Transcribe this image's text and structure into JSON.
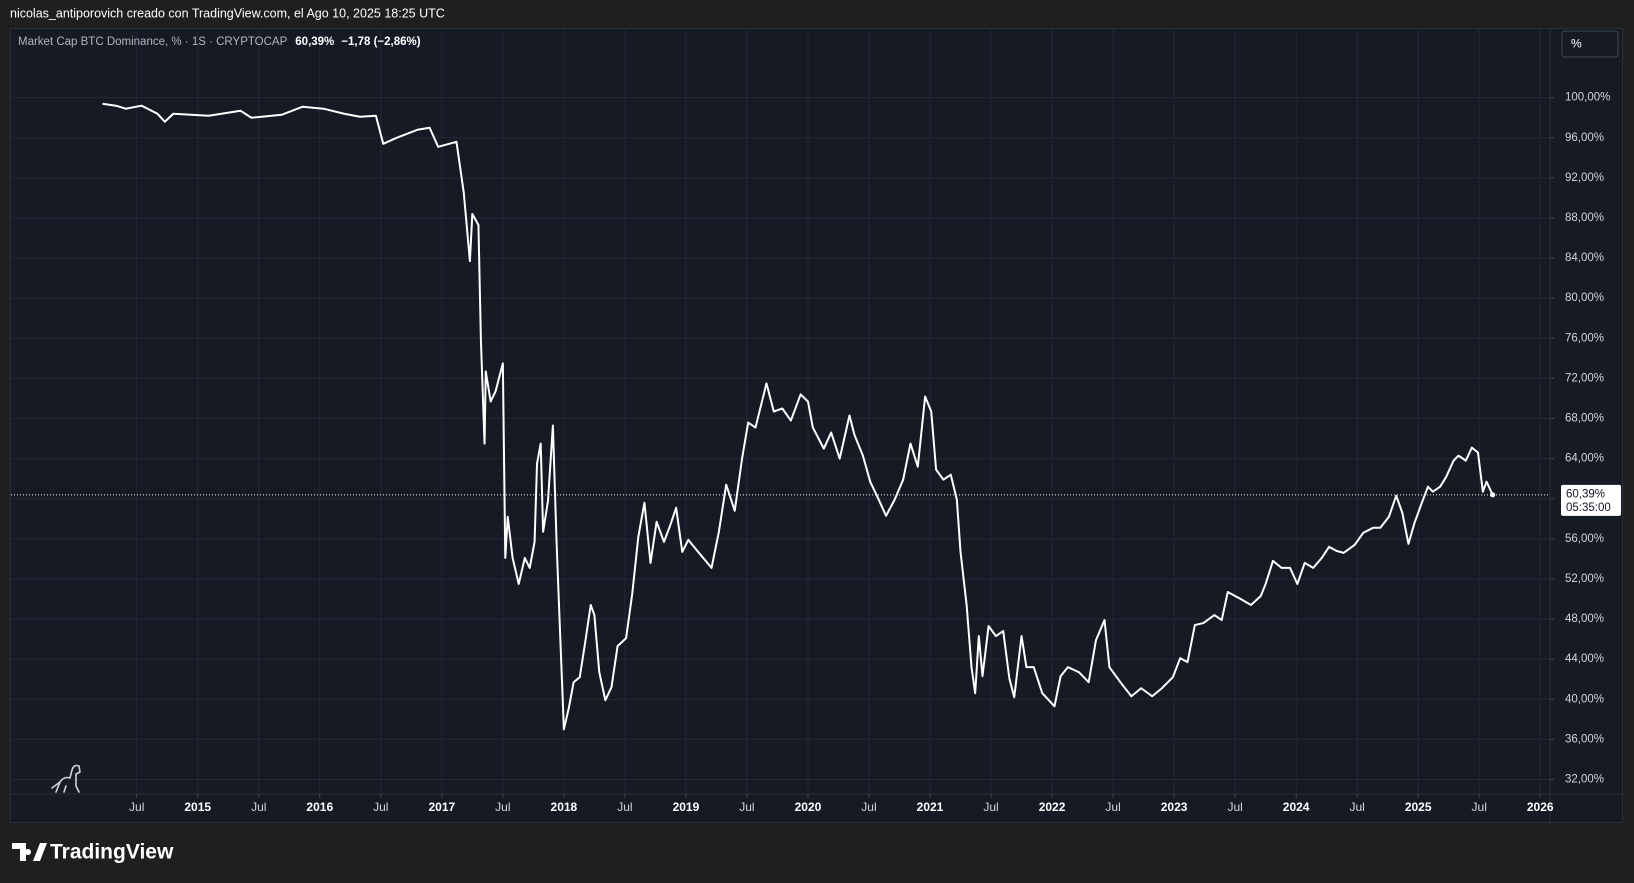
{
  "header": "nicolas_antiporovich creado con TradingView.com, el Ago 10, 2025 18:25 UTC",
  "scale_button": "%",
  "logo": "TradingView",
  "chart_data": {
    "type": "line",
    "series": [
      {
        "name": "Market Cap BTC Dominance, % · 1S · CRYPTOCAP",
        "color": "#ffffff",
        "values": [
          99.4,
          99.2,
          98.9,
          99.2,
          98.4,
          97.6,
          98.4,
          98.2,
          98.7,
          98.0,
          98.3,
          99.1,
          98.9,
          98.4,
          98.1,
          98.2,
          95.4,
          96.0,
          96.8,
          97.0,
          95.1,
          95.6,
          90.5,
          83.7,
          88.4,
          87.3,
          75.9,
          65.5,
          72.7,
          69.7,
          70.7,
          73.5,
          54.1,
          58.2,
          54.1,
          51.5,
          54.1,
          53.1,
          55.7,
          63.5,
          65.5,
          56.7,
          59.8,
          67.3,
          55.7,
          46.3,
          37.0,
          39.1,
          41.7,
          42.2,
          45.3,
          49.4,
          48.4,
          42.7,
          39.9,
          41.2,
          45.3,
          46.1,
          50.5,
          56.2,
          59.6,
          53.6,
          57.7,
          55.7,
          57.3,
          59.1,
          54.7,
          55.9,
          54.7,
          53.1,
          56.7,
          61.4,
          58.8,
          64.0,
          67.6,
          67.1,
          71.5,
          68.7,
          69.0,
          67.8,
          70.4,
          69.7,
          67.1,
          65.0,
          66.6,
          64.0,
          68.3,
          66.4,
          64.3,
          61.7,
          59.9,
          58.3,
          59.9,
          61.9,
          65.5,
          63.2,
          70.2,
          68.7,
          62.9,
          61.9,
          62.4,
          59.9,
          54.7,
          49.4,
          43.2,
          40.6,
          46.3,
          42.3,
          47.3,
          46.3,
          46.8,
          42.1,
          40.2,
          46.3,
          43.2,
          43.2,
          40.6,
          39.3,
          42.3,
          43.2,
          42.7,
          41.7,
          45.9,
          47.9,
          43.2,
          41.7,
          40.3,
          41.1,
          40.3,
          41.1,
          42.2,
          44.1,
          43.7,
          47.4,
          47.6,
          48.4,
          47.9,
          50.7,
          50.3,
          49.9,
          49.4,
          50.3,
          51.5,
          53.8,
          53.1,
          53.1,
          51.5,
          53.6,
          53.1,
          54.1,
          55.2,
          54.8,
          54.6,
          55.4,
          56.6,
          57.1,
          57.1,
          58.2,
          60.3,
          58.6,
          55.5,
          57.6,
          59.6,
          61.2,
          60.7,
          61.2,
          62.2,
          63.8,
          64.3,
          63.8,
          65.1,
          64.6,
          60.7,
          61.7,
          60.39
        ]
      }
    ],
    "x": [
      2014.22,
      2014.33,
      2014.41,
      2014.54,
      2014.67,
      2014.73,
      2014.8,
      2015.09,
      2015.35,
      2015.44,
      2015.69,
      2015.86,
      2016.03,
      2016.2,
      2016.33,
      2016.46,
      2016.52,
      2016.63,
      2016.8,
      2016.9,
      2016.97,
      2017.12,
      2017.18,
      2017.23,
      2017.25,
      2017.3,
      2017.32,
      2017.35,
      2017.36,
      2017.4,
      2017.44,
      2017.5,
      2017.52,
      2017.54,
      2017.58,
      2017.63,
      2017.68,
      2017.72,
      2017.76,
      2017.78,
      2017.81,
      2017.83,
      2017.87,
      2017.91,
      2017.94,
      2017.97,
      2018.0,
      2018.04,
      2018.08,
      2018.13,
      2018.17,
      2018.22,
      2018.25,
      2018.29,
      2018.34,
      2018.39,
      2018.44,
      2018.51,
      2018.56,
      2018.61,
      2018.66,
      2018.71,
      2018.76,
      2018.82,
      2018.87,
      2018.92,
      2018.97,
      2019.02,
      2019.1,
      2019.21,
      2019.27,
      2019.33,
      2019.4,
      2019.46,
      2019.51,
      2019.57,
      2019.66,
      2019.72,
      2019.79,
      2019.86,
      2019.94,
      2020.0,
      2020.04,
      2020.13,
      2020.19,
      2020.26,
      2020.34,
      2020.38,
      2020.45,
      2020.51,
      2020.58,
      2020.64,
      2020.71,
      2020.78,
      2020.84,
      2020.9,
      2020.96,
      2021.01,
      2021.05,
      2021.11,
      2021.17,
      2021.22,
      2021.25,
      2021.3,
      2021.34,
      2021.37,
      2021.4,
      2021.43,
      2021.48,
      2021.54,
      2021.6,
      2021.65,
      2021.69,
      2021.75,
      2021.79,
      2021.85,
      2021.92,
      2022.02,
      2022.07,
      2022.13,
      2022.22,
      2022.3,
      2022.36,
      2022.43,
      2022.47,
      2022.56,
      2022.65,
      2022.73,
      2022.82,
      2022.9,
      2022.99,
      2023.05,
      2023.11,
      2023.17,
      2023.24,
      2023.33,
      2023.39,
      2023.44,
      2023.5,
      2023.56,
      2023.63,
      2023.71,
      2023.75,
      2023.81,
      2023.88,
      2023.95,
      2024.01,
      2024.07,
      2024.14,
      2024.21,
      2024.27,
      2024.33,
      2024.39,
      2024.48,
      2024.55,
      2024.63,
      2024.69,
      2024.76,
      2024.82,
      2024.87,
      2024.92,
      2024.97,
      2025.03,
      2025.08,
      2025.12,
      2025.18,
      2025.23,
      2025.29,
      2025.33,
      2025.39,
      2025.44,
      2025.49,
      2025.53,
      2025.56,
      2025.61
    ],
    "last_value": 60.39,
    "last_label": "60,39%",
    "change": "−1,78 (−2,86%)",
    "countdown": "05:35:00",
    "xlim": [
      2013.47,
      2026.08
    ],
    "ylim": [
      30.55,
      106.85
    ],
    "xticks": [
      {
        "value": 2014.5,
        "label": "Jul"
      },
      2015,
      {
        "value": 2015.5,
        "label": "Jul"
      },
      2016,
      {
        "value": 2016.5,
        "label": "Jul"
      },
      2017,
      {
        "value": 2017.5,
        "label": "Jul"
      },
      2018,
      {
        "value": 2018.5,
        "label": "Jul"
      },
      2019,
      {
        "value": 2019.5,
        "label": "Jul"
      },
      2020,
      {
        "value": 2020.5,
        "label": "Jul"
      },
      2021,
      {
        "value": 2021.5,
        "label": "Jul"
      },
      2022,
      {
        "value": 2022.5,
        "label": "Jul"
      },
      2023,
      {
        "value": 2023.5,
        "label": "Jul"
      },
      2024,
      {
        "value": 2024.5,
        "label": "Jul"
      },
      2025,
      {
        "value": 2025.5,
        "label": "Jul"
      },
      2026
    ],
    "yticks": [
      {
        "value": 32,
        "label": "32,00%"
      },
      {
        "value": 36,
        "label": "36,00%"
      },
      {
        "value": 40,
        "label": "40,00%"
      },
      {
        "value": 44,
        "label": "44,00%"
      },
      {
        "value": 48,
        "label": "48,00%"
      },
      {
        "value": 52,
        "label": "52,00%"
      },
      {
        "value": 56,
        "label": "56,00%"
      },
      {
        "value": 60,
        "label": "60,00%"
      },
      {
        "value": 64,
        "label": "64,00%"
      },
      {
        "value": 68,
        "label": "68,00%"
      },
      {
        "value": 72,
        "label": "72,00%"
      },
      {
        "value": 76,
        "label": "76,00%"
      },
      {
        "value": 80,
        "label": "80,00%"
      },
      {
        "value": 84,
        "label": "84,00%"
      },
      {
        "value": 88,
        "label": "88,00%"
      },
      {
        "value": 92,
        "label": "92,00%"
      },
      {
        "value": 96,
        "label": "96,00%"
      },
      {
        "value": 100,
        "label": "100,00%"
      }
    ],
    "grid": true
  }
}
